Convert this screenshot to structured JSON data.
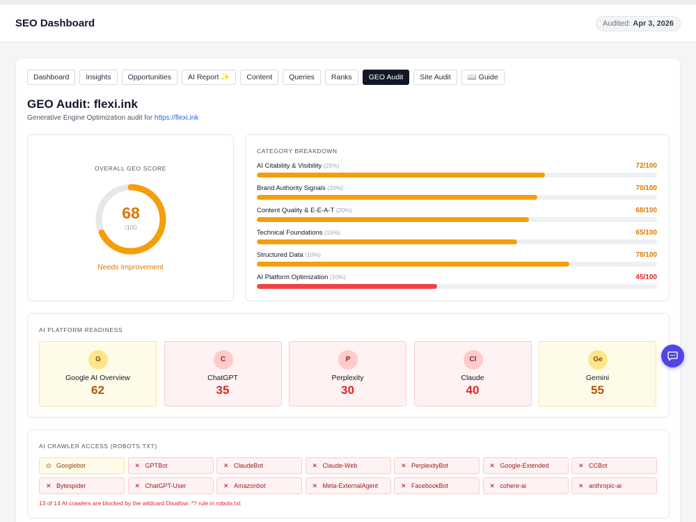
{
  "header": {
    "title": "SEO Dashboard",
    "audited_label": "Audited:",
    "audited_date": "Apr 3, 2026"
  },
  "tabs": [
    {
      "label": "Dashboard",
      "active": false
    },
    {
      "label": "Insights",
      "active": false
    },
    {
      "label": "Opportunities",
      "active": false
    },
    {
      "label": "AI Report ✨",
      "active": false
    },
    {
      "label": "Content",
      "active": false
    },
    {
      "label": "Queries",
      "active": false
    },
    {
      "label": "Ranks",
      "active": false
    },
    {
      "label": "GEO Audit",
      "active": true
    },
    {
      "label": "Site Audit",
      "active": false
    },
    {
      "label": "📖 Guide",
      "active": false
    }
  ],
  "page": {
    "title": "GEO Audit: flexi.ink",
    "subtitle_prefix": "Generative Engine Optimization audit for",
    "url": "https://flexi.ink"
  },
  "overall": {
    "heading": "Overall GEO Score",
    "score": "68",
    "max": "/100",
    "score_fraction": 0.68,
    "status": "Needs Improvement",
    "color": "#f59e0b"
  },
  "breakdown": {
    "heading": "Category Breakdown",
    "categories": [
      {
        "name": "AI Citability & Visibility",
        "weight": "(25%)",
        "score": "72/100",
        "value": 72,
        "color": "#f59e0b",
        "text_color": "#d97706"
      },
      {
        "name": "Brand Authority Signals",
        "weight": "(20%)",
        "score": "70/100",
        "value": 70,
        "color": "#f59e0b",
        "text_color": "#d97706"
      },
      {
        "name": "Content Quality & E-E-A-T",
        "weight": "(20%)",
        "score": "68/100",
        "value": 68,
        "color": "#f59e0b",
        "text_color": "#d97706"
      },
      {
        "name": "Technical Foundations",
        "weight": "(15%)",
        "score": "65/100",
        "value": 65,
        "color": "#f59e0b",
        "text_color": "#d97706"
      },
      {
        "name": "Structured Data",
        "weight": "(10%)",
        "score": "78/100",
        "value": 78,
        "color": "#f59e0b",
        "text_color": "#d97706"
      },
      {
        "name": "AI Platform Optimization",
        "weight": "(10%)",
        "score": "45/100",
        "value": 45,
        "color": "#ef4444",
        "text_color": "#dc2626"
      }
    ]
  },
  "platforms": {
    "heading": "AI Platform Readiness",
    "items": [
      {
        "badge": "G",
        "name": "Google AI Overview",
        "score": "62",
        "tone": "amber"
      },
      {
        "badge": "C",
        "name": "ChatGPT",
        "score": "35",
        "tone": "red"
      },
      {
        "badge": "P",
        "name": "Perplexity",
        "score": "30",
        "tone": "red"
      },
      {
        "badge": "Cl",
        "name": "Claude",
        "score": "40",
        "tone": "red"
      },
      {
        "badge": "Ge",
        "name": "Gemini",
        "score": "55",
        "tone": "amber"
      }
    ]
  },
  "crawlers": {
    "heading": "AI Crawler Access (robots.txt)",
    "bots": [
      {
        "name": "Googlebot",
        "status": "allowed",
        "icon": "⊙"
      },
      {
        "name": "GPTBot",
        "status": "blocked",
        "icon": "✕"
      },
      {
        "name": "ClaudeBot",
        "status": "blocked",
        "icon": "✕"
      },
      {
        "name": "Claude-Web",
        "status": "blocked",
        "icon": "✕"
      },
      {
        "name": "PerplexityBot",
        "status": "blocked",
        "icon": "✕"
      },
      {
        "name": "Google-Extended",
        "status": "blocked",
        "icon": "✕"
      },
      {
        "name": "CCBot",
        "status": "blocked",
        "icon": "✕"
      },
      {
        "name": "Bytespider",
        "status": "blocked",
        "icon": "✕"
      },
      {
        "name": "ChatGPT-User",
        "status": "blocked",
        "icon": "✕"
      },
      {
        "name": "Amazonbot",
        "status": "blocked",
        "icon": "✕"
      },
      {
        "name": "Meta-ExternalAgent",
        "status": "blocked",
        "icon": "✕"
      },
      {
        "name": "FacebookBot",
        "status": "blocked",
        "icon": "✕"
      },
      {
        "name": "cohere-ai",
        "status": "blocked",
        "icon": "✕"
      },
      {
        "name": "anthropic-ai",
        "status": "blocked",
        "icon": "✕"
      }
    ],
    "note": "13 of 14 AI crawlers are blocked by the wildcard Disallow: *? rule in robots.txt"
  },
  "chat": {
    "icon": "chat-bubble-icon"
  }
}
